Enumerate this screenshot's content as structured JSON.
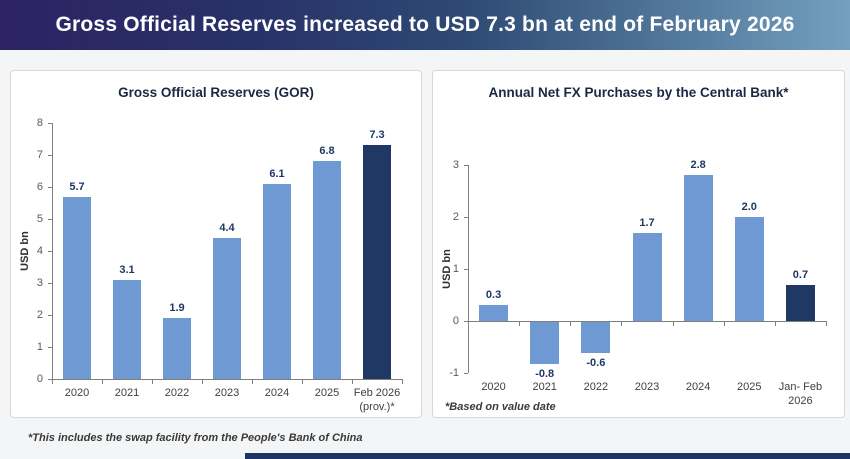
{
  "header": {
    "title": "Gross Official Reserves increased to USD 7.3 bn at end of February 2026"
  },
  "page_footnote": "*This includes the swap facility from the People's Bank of China",
  "colors": {
    "bar_light": "#6f99d2",
    "bar_dark": "#1f3864",
    "axis": "#7f7f7f",
    "value_label": "#1f3864",
    "header_gradient_start": "#2d2264",
    "header_gradient_end": "#74a0bf"
  },
  "chart_data": [
    {
      "type": "bar",
      "title": "Gross Official Reserves (GOR)",
      "ylabel": "USD bn",
      "xlabel": "",
      "categories": [
        "2020",
        "2021",
        "2022",
        "2023",
        "2024",
        "2025",
        "Feb 2026\n(prov.)*"
      ],
      "values": [
        5.7,
        3.1,
        1.9,
        4.4,
        6.1,
        6.8,
        7.3
      ],
      "labels": [
        "5.7",
        "3.1",
        "1.9",
        "4.4",
        "6.1",
        "6.8",
        "7.3"
      ],
      "ylim": [
        0,
        8
      ],
      "yticks": [
        8,
        7,
        6,
        5,
        4,
        3,
        2,
        1,
        0
      ],
      "grid": false,
      "legend": "none",
      "highlight_last": true
    },
    {
      "type": "bar",
      "title": "Annual Net FX Purchases by the Central Bank*",
      "ylabel": "USD bn",
      "xlabel": "",
      "categories": [
        "2020",
        "2021",
        "2022",
        "2023",
        "2024",
        "2025",
        "Jan- Feb\n2026"
      ],
      "values": [
        0.3,
        -0.8,
        -0.6,
        1.7,
        2.8,
        2.0,
        0.7
      ],
      "labels": [
        "0.3",
        "-0.8",
        "-0.6",
        "1.7",
        "2.8",
        "2.0",
        "0.7"
      ],
      "ylim": [
        -1,
        3
      ],
      "yticks": [
        3,
        2,
        1,
        0,
        -1
      ],
      "grid": false,
      "legend": "none",
      "footnote": "*Based on value date",
      "highlight_last": true
    }
  ]
}
